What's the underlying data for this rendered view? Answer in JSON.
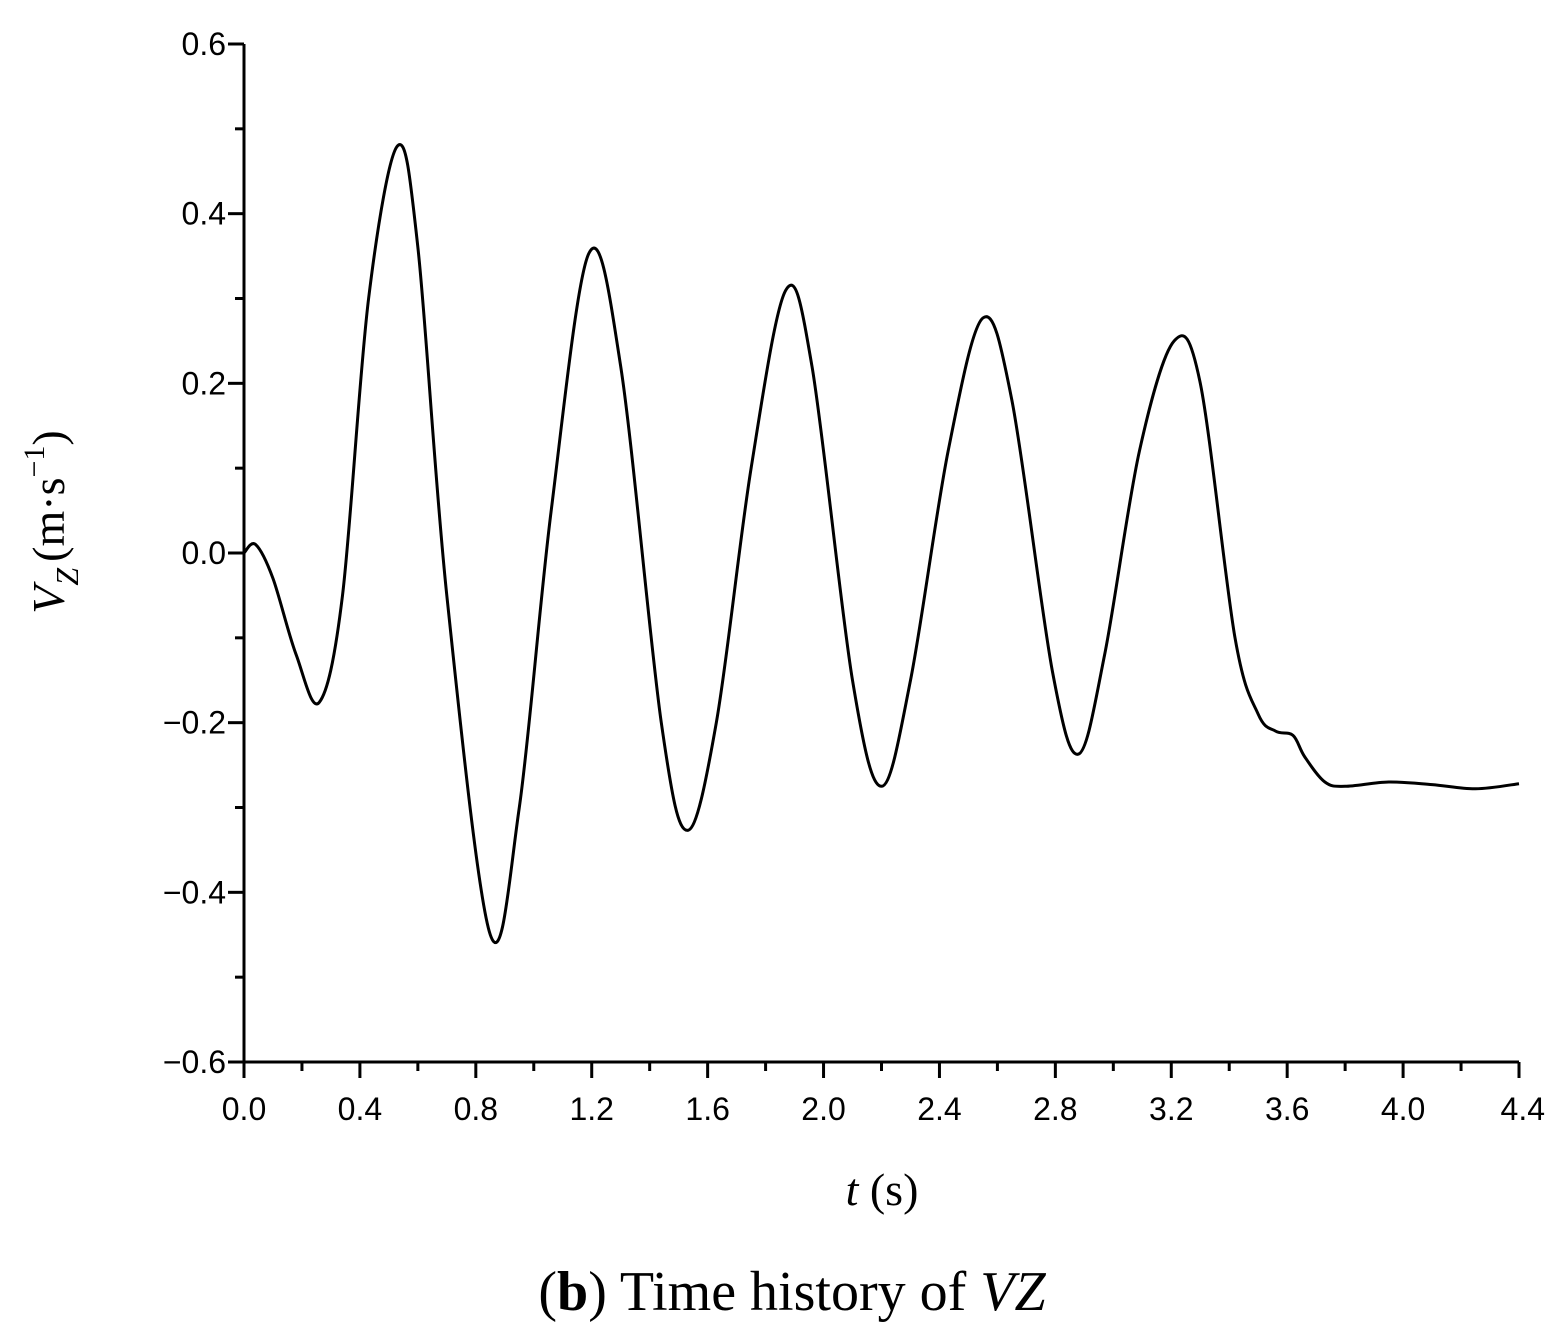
{
  "chart_data": {
    "type": "line",
    "caption": {
      "prefix_open": "(",
      "letter": "b",
      "prefix_close": ")",
      "text": " Time history of ",
      "symbol": "V",
      "symbol_sub": "Z"
    },
    "xlabel": {
      "symbol": "t",
      "unit": " (s)"
    },
    "ylabel": {
      "symbol": "V",
      "subscript": "Z",
      "unit": "(m·s",
      "unit_exp": "−1",
      "unit_close": ")"
    },
    "xlim": [
      0.0,
      4.4
    ],
    "ylim": [
      -0.6,
      0.6
    ],
    "x_ticks": [
      "0.0",
      "0.4",
      "0.8",
      "1.2",
      "1.6",
      "2.0",
      "2.4",
      "2.8",
      "3.2",
      "3.6",
      "4.0",
      "4.4"
    ],
    "y_ticks": [
      "0.6",
      "0.4",
      "0.2",
      "0.0",
      "−0.2",
      "−0.4",
      "−0.6"
    ],
    "grid": false,
    "series": [
      {
        "color": "#000000",
        "x": [
          0.0,
          0.04,
          0.1,
          0.18,
          0.26,
          0.34,
          0.43,
          0.53,
          0.6,
          0.7,
          0.85,
          0.95,
          1.06,
          1.19,
          1.3,
          1.44,
          1.53,
          1.63,
          1.75,
          1.87,
          1.96,
          2.1,
          2.2,
          2.3,
          2.43,
          2.55,
          2.65,
          2.79,
          2.88,
          2.97,
          3.09,
          3.21,
          3.3,
          3.42,
          3.5,
          3.56,
          3.62,
          3.66,
          3.73,
          3.8,
          3.95,
          4.1,
          4.25,
          4.4
        ],
        "y": [
          0.0,
          0.01,
          -0.03,
          -0.12,
          -0.176,
          -0.05,
          0.3,
          0.48,
          0.36,
          -0.05,
          -0.45,
          -0.3,
          0.05,
          0.353,
          0.22,
          -0.2,
          -0.327,
          -0.2,
          0.1,
          0.31,
          0.22,
          -0.15,
          -0.275,
          -0.15,
          0.12,
          0.277,
          0.18,
          -0.14,
          -0.237,
          -0.12,
          0.12,
          0.25,
          0.2,
          -0.1,
          -0.19,
          -0.21,
          -0.215,
          -0.24,
          -0.27,
          -0.275,
          -0.27,
          -0.273,
          -0.278,
          -0.272
        ]
      }
    ]
  }
}
